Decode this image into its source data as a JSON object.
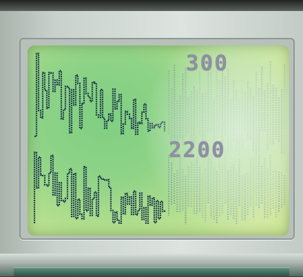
{
  "display": {
    "upper_value": "300",
    "lower_value": "2200"
  },
  "colors": {
    "lcd_background": "#8fd387",
    "trace_color": "#1e3a4c",
    "digit_color": "#8f8fa3",
    "bezel": "#c9d1cc"
  },
  "icons": [
    "lcd-screen",
    "waveform-trace"
  ]
}
